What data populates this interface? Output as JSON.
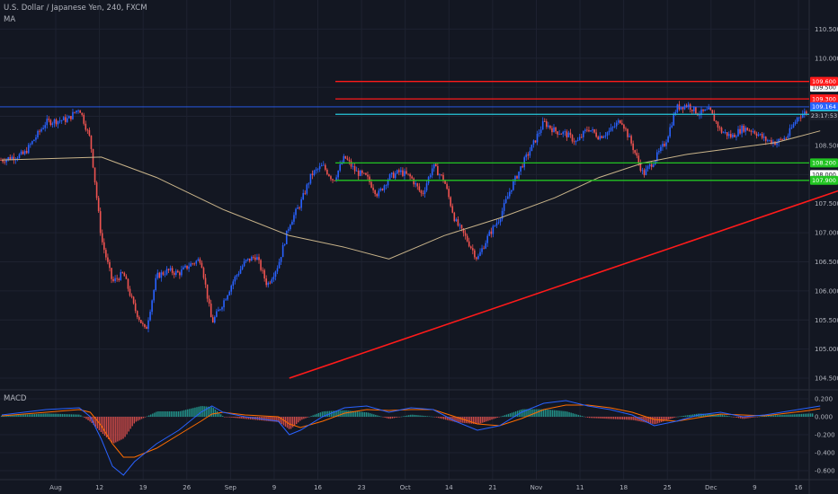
{
  "header": {
    "symbol": "U.S. Dollar / Japanese Yen, 240, FXCM",
    "indicator": "MA"
  },
  "macd_panel": {
    "title": "MACD"
  },
  "colors": {
    "background": "#131722",
    "grid": "#1e2230",
    "bull": "#2962ff",
    "bear": "#ef5350",
    "ma": "#c9b48a",
    "trendline": "#ff1a1a",
    "cyan": "#26c6da",
    "green": "#22c522",
    "macd": "#2962ff",
    "signal": "#ff6d00",
    "hist_pos": "#26a69a",
    "hist_neg": "#ef5350",
    "axis_text": "#b2b5be"
  },
  "chart_data": [
    {
      "type": "candlestick",
      "title": "U.S. Dollar / Japanese Yen, 240, FXCM",
      "x_axis": {
        "ticks": [
          "Aug",
          "12",
          "19",
          "26",
          "Sep",
          "9",
          "16",
          "23",
          "Oct",
          "14",
          "21",
          "Nov",
          "11",
          "18",
          "25",
          "Dec",
          "9",
          "16"
        ]
      },
      "y_axis": {
        "ylim": [
          104.3,
          111.0
        ],
        "ticks": [
          "104.500",
          "105.000",
          "105.500",
          "106.000",
          "106.500",
          "107.000",
          "107.500",
          "108.000",
          "108.500",
          "109.000",
          "109.500",
          "110.000",
          "110.500"
        ]
      },
      "close_path": [
        [
          0,
          108.25
        ],
        [
          2,
          108.35
        ],
        [
          4,
          108.9
        ],
        [
          6,
          108.95
        ],
        [
          7,
          109.15
        ],
        [
          8,
          108.6
        ],
        [
          9,
          106.9
        ],
        [
          10,
          106.15
        ],
        [
          11,
          106.3
        ],
        [
          12,
          105.7
        ],
        [
          13,
          105.3
        ],
        [
          14,
          106.25
        ],
        [
          15,
          106.35
        ],
        [
          16,
          106.3
        ],
        [
          17,
          106.45
        ],
        [
          18,
          106.55
        ],
        [
          19,
          105.45
        ],
        [
          20,
          105.8
        ],
        [
          21,
          106.2
        ],
        [
          22,
          106.5
        ],
        [
          23,
          106.6
        ],
        [
          24,
          106.1
        ],
        [
          25,
          106.45
        ],
        [
          26,
          107.15
        ],
        [
          27,
          107.5
        ],
        [
          28,
          108.0
        ],
        [
          29,
          108.15
        ],
        [
          30,
          107.9
        ],
        [
          31,
          108.3
        ],
        [
          32,
          108.05
        ],
        [
          33,
          107.95
        ],
        [
          34,
          107.65
        ],
        [
          35,
          107.95
        ],
        [
          36,
          108.05
        ],
        [
          37,
          107.95
        ],
        [
          38,
          107.65
        ],
        [
          39,
          108.15
        ],
        [
          40,
          107.9
        ],
        [
          41,
          107.2
        ],
        [
          42,
          106.9
        ],
        [
          43,
          106.55
        ],
        [
          44,
          106.95
        ],
        [
          45,
          107.25
        ],
        [
          46,
          107.75
        ],
        [
          47,
          108.15
        ],
        [
          48,
          108.5
        ],
        [
          49,
          108.9
        ],
        [
          50,
          108.75
        ],
        [
          51,
          108.7
        ],
        [
          52,
          108.55
        ],
        [
          53,
          108.8
        ],
        [
          54,
          108.65
        ],
        [
          55,
          108.75
        ],
        [
          56,
          108.95
        ],
        [
          57,
          108.5
        ],
        [
          58,
          108.0
        ],
        [
          59,
          108.25
        ],
        [
          60,
          108.55
        ],
        [
          61,
          109.15
        ],
        [
          62,
          109.2
        ],
        [
          63,
          109.05
        ],
        [
          64,
          109.1
        ],
        [
          65,
          108.75
        ],
        [
          66,
          108.65
        ],
        [
          67,
          108.8
        ],
        [
          68,
          108.75
        ],
        [
          69,
          108.6
        ],
        [
          70,
          108.55
        ],
        [
          71,
          108.65
        ],
        [
          72,
          109.0
        ],
        [
          73,
          109.1
        ]
      ],
      "series": [
        {
          "name": "MA",
          "values": [
            [
              0,
              108.25
            ],
            [
              9,
              108.3
            ],
            [
              14,
              107.95
            ],
            [
              20,
              107.4
            ],
            [
              26,
              106.95
            ],
            [
              31,
              106.75
            ],
            [
              35,
              106.55
            ],
            [
              40,
              106.95
            ],
            [
              45,
              107.25
            ],
            [
              50,
              107.6
            ],
            [
              54,
              107.95
            ],
            [
              58,
              108.2
            ],
            [
              62,
              108.35
            ],
            [
              66,
              108.45
            ],
            [
              70,
              108.55
            ],
            [
              74,
              108.75
            ]
          ]
        }
      ],
      "levels": [
        {
          "value": 109.6,
          "label": "109.600",
          "color": "#ff1a1a"
        },
        {
          "value": 109.3,
          "label": "109.300",
          "color": "#ff1a1a"
        },
        {
          "value": 109.164,
          "label": "109.164",
          "color": "#2962ff"
        },
        {
          "value": 109.035,
          "label": "109.035",
          "color": "#26c6da"
        },
        {
          "value": 108.2,
          "label": "108.200",
          "color": "#22c522"
        },
        {
          "value": 107.9,
          "label": "107.900",
          "color": "#22c522"
        }
      ],
      "extra_tags": [
        {
          "value": 109.5,
          "label": "109.500"
        },
        {
          "value": 108.0,
          "label": "108.000"
        }
      ],
      "countdown": "23:17:53",
      "trendline": {
        "from": [
          26,
          104.5
        ],
        "to": [
          110,
          109.95
        ]
      }
    },
    {
      "type": "line",
      "title": "MACD",
      "y_axis": {
        "ylim": [
          -0.7,
          0.3
        ],
        "ticks": [
          "0.200",
          "0.000",
          "-0.200",
          "-0.400",
          "-0.600"
        ]
      },
      "series": [
        {
          "name": "MACD",
          "values": [
            [
              0,
              0.02
            ],
            [
              4,
              0.08
            ],
            [
              7,
              0.1
            ],
            [
              8,
              0.0
            ],
            [
              9,
              -0.25
            ],
            [
              10,
              -0.55
            ],
            [
              11,
              -0.65
            ],
            [
              12,
              -0.5
            ],
            [
              14,
              -0.3
            ],
            [
              16,
              -0.15
            ],
            [
              18,
              0.05
            ],
            [
              19,
              0.12
            ],
            [
              20,
              0.05
            ],
            [
              22,
              0.0
            ],
            [
              25,
              -0.05
            ],
            [
              26,
              -0.2
            ],
            [
              27,
              -0.15
            ],
            [
              29,
              0.0
            ],
            [
              31,
              0.1
            ],
            [
              33,
              0.12
            ],
            [
              35,
              0.05
            ],
            [
              37,
              0.1
            ],
            [
              39,
              0.08
            ],
            [
              41,
              -0.05
            ],
            [
              43,
              -0.15
            ],
            [
              45,
              -0.1
            ],
            [
              47,
              0.05
            ],
            [
              49,
              0.15
            ],
            [
              51,
              0.18
            ],
            [
              53,
              0.12
            ],
            [
              55,
              0.08
            ],
            [
              57,
              0.02
            ],
            [
              59,
              -0.1
            ],
            [
              61,
              -0.05
            ],
            [
              63,
              0.02
            ],
            [
              65,
              0.05
            ],
            [
              67,
              0.0
            ],
            [
              69,
              0.02
            ],
            [
              71,
              0.06
            ],
            [
              73,
              0.1
            ],
            [
              74,
              0.12
            ]
          ]
        },
        {
          "name": "Signal",
          "values": [
            [
              0,
              0.01
            ],
            [
              4,
              0.05
            ],
            [
              7,
              0.08
            ],
            [
              8,
              0.05
            ],
            [
              9,
              -0.1
            ],
            [
              10,
              -0.3
            ],
            [
              11,
              -0.45
            ],
            [
              12,
              -0.45
            ],
            [
              14,
              -0.35
            ],
            [
              16,
              -0.2
            ],
            [
              18,
              -0.05
            ],
            [
              19,
              0.03
            ],
            [
              20,
              0.05
            ],
            [
              22,
              0.02
            ],
            [
              25,
              0.0
            ],
            [
              26,
              -0.08
            ],
            [
              27,
              -0.12
            ],
            [
              29,
              -0.05
            ],
            [
              31,
              0.04
            ],
            [
              33,
              0.08
            ],
            [
              35,
              0.07
            ],
            [
              37,
              0.08
            ],
            [
              39,
              0.08
            ],
            [
              41,
              0.0
            ],
            [
              43,
              -0.08
            ],
            [
              45,
              -0.1
            ],
            [
              47,
              -0.02
            ],
            [
              49,
              0.08
            ],
            [
              51,
              0.13
            ],
            [
              53,
              0.13
            ],
            [
              55,
              0.1
            ],
            [
              57,
              0.05
            ],
            [
              59,
              -0.03
            ],
            [
              61,
              -0.05
            ],
            [
              63,
              -0.01
            ],
            [
              65,
              0.03
            ],
            [
              67,
              0.02
            ],
            [
              69,
              0.01
            ],
            [
              71,
              0.04
            ],
            [
              73,
              0.07
            ],
            [
              74,
              0.09
            ]
          ]
        },
        {
          "name": "Histogram",
          "kind": "bar"
        }
      ]
    }
  ]
}
